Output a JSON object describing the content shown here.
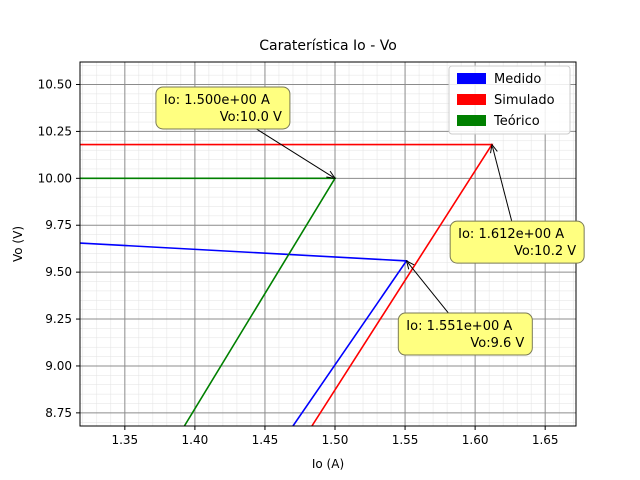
{
  "chart_data": {
    "type": "line",
    "title": "Caraterística Io - Vo",
    "xlabel": "Io (A)",
    "ylabel": "Vo (V)",
    "xlim": [
      1.318,
      1.672
    ],
    "ylim": [
      8.68,
      10.62
    ],
    "xticks": [
      1.35,
      1.4,
      1.45,
      1.5,
      1.55,
      1.6,
      1.65
    ],
    "xtick_labels": [
      "1.35",
      "1.40",
      "1.45",
      "1.50",
      "1.55",
      "1.60",
      "1.65"
    ],
    "yticks": [
      8.75,
      9.0,
      9.25,
      9.5,
      9.75,
      10.0,
      10.25,
      10.5
    ],
    "ytick_labels": [
      "8.75",
      "9.00",
      "9.25",
      "9.50",
      "9.75",
      "10.00",
      "10.25",
      "10.50"
    ],
    "grid": true,
    "minor_grid": true,
    "legend_position": "top-right",
    "series": [
      {
        "name": "Medido",
        "color": "#0000ff",
        "points": [
          [
            1.318,
            9.655
          ],
          [
            1.551,
            9.56
          ],
          [
            1.47,
            8.68
          ]
        ]
      },
      {
        "name": "Simulado",
        "color": "#ff0000",
        "points": [
          [
            1.318,
            10.18
          ],
          [
            1.612,
            10.18
          ],
          [
            1.4835,
            8.68
          ]
        ]
      },
      {
        "name": "Teórico",
        "color": "#008000",
        "points": [
          [
            1.318,
            10.0
          ],
          [
            1.5,
            10.0
          ],
          [
            1.3925,
            8.68
          ]
        ]
      }
    ],
    "annotations": [
      {
        "line1": "Io: 1.500e+00  A",
        "line2": "Vo:10.0 V",
        "point": [
          1.5,
          10.0
        ],
        "text_anchor": [
          1.42,
          10.375
        ]
      },
      {
        "line1": "Io: 1.612e+00  A",
        "line2": "Vo:10.2 V",
        "point": [
          1.612,
          10.18
        ],
        "text_anchor": [
          1.63,
          9.66
        ]
      },
      {
        "line1": "Io: 1.551e+00  A",
        "line2": "Vo:9.6 V",
        "point": [
          1.551,
          9.56
        ],
        "text_anchor": [
          1.593,
          9.17
        ]
      }
    ]
  }
}
